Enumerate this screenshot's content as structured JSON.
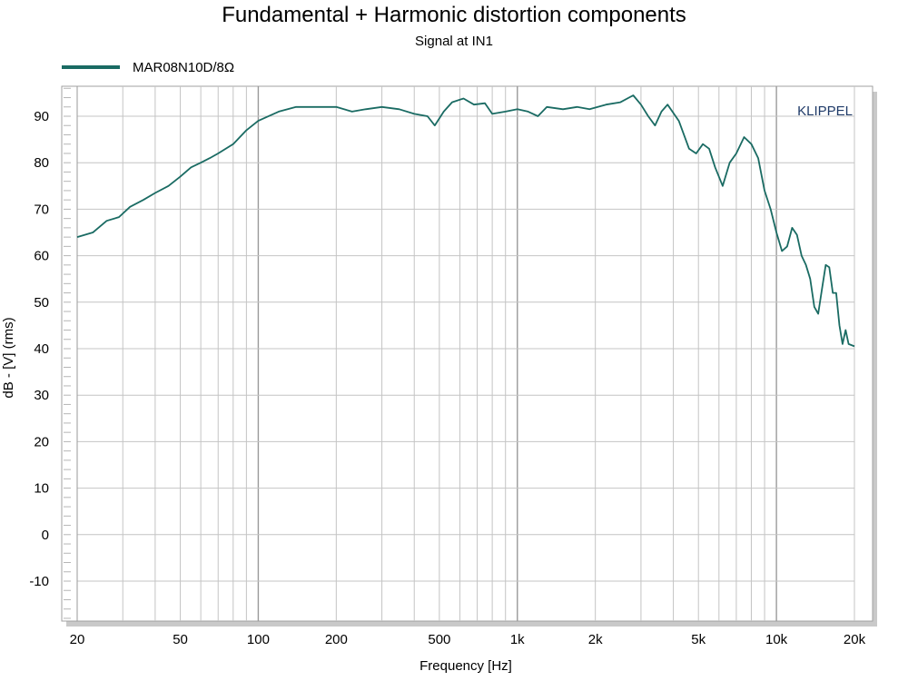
{
  "chart_data": {
    "type": "line",
    "title": "Fundamental + Harmonic distortion components",
    "subtitle": "Signal at IN1",
    "xlabel": "Frequency [Hz]",
    "ylabel": "dB - [V]  (rms)",
    "xscale": "log",
    "xlim": [
      20,
      20000
    ],
    "ylim": [
      -18,
      97
    ],
    "x_ticks": [
      20,
      50,
      100,
      200,
      500,
      1000,
      2000,
      5000,
      10000,
      20000
    ],
    "x_tick_labels": [
      "20",
      "50",
      "100",
      "200",
      "500",
      "1k",
      "2k",
      "5k",
      "10k",
      "20k"
    ],
    "y_ticks": [
      90,
      80,
      70,
      60,
      50,
      40,
      30,
      20,
      10,
      0,
      -10
    ],
    "y_tick_labels": [
      "90",
      "80",
      "70",
      "60",
      "50",
      "40",
      "30",
      "20",
      "10",
      "0",
      "-10"
    ],
    "grid": true,
    "legend_position": "top-left",
    "watermark": "KLIPPEL",
    "series": [
      {
        "name": "MAR08N10D/8Ω",
        "color": "#1a6b63",
        "points": [
          [
            20,
            64
          ],
          [
            23,
            65
          ],
          [
            26,
            67.5
          ],
          [
            29,
            68.3
          ],
          [
            32,
            70.5
          ],
          [
            36,
            72
          ],
          [
            40,
            73.5
          ],
          [
            45,
            75
          ],
          [
            50,
            77
          ],
          [
            55,
            79
          ],
          [
            60,
            80
          ],
          [
            65,
            81
          ],
          [
            70,
            82
          ],
          [
            80,
            84
          ],
          [
            90,
            87
          ],
          [
            100,
            89
          ],
          [
            120,
            91
          ],
          [
            140,
            92
          ],
          [
            170,
            92
          ],
          [
            200,
            92
          ],
          [
            230,
            91
          ],
          [
            260,
            91.5
          ],
          [
            300,
            92
          ],
          [
            350,
            91.5
          ],
          [
            400,
            90.5
          ],
          [
            450,
            90
          ],
          [
            480,
            88
          ],
          [
            520,
            91
          ],
          [
            560,
            93
          ],
          [
            620,
            93.8
          ],
          [
            680,
            92.5
          ],
          [
            750,
            92.8
          ],
          [
            800,
            90.5
          ],
          [
            900,
            91
          ],
          [
            1000,
            91.5
          ],
          [
            1100,
            91
          ],
          [
            1200,
            90
          ],
          [
            1300,
            92
          ],
          [
            1500,
            91.5
          ],
          [
            1700,
            92
          ],
          [
            1900,
            91.5
          ],
          [
            2200,
            92.5
          ],
          [
            2500,
            93
          ],
          [
            2800,
            94.5
          ],
          [
            3000,
            92.5
          ],
          [
            3200,
            90
          ],
          [
            3400,
            88
          ],
          [
            3600,
            91
          ],
          [
            3800,
            92.5
          ],
          [
            4200,
            89
          ],
          [
            4600,
            83
          ],
          [
            4900,
            82
          ],
          [
            5200,
            84
          ],
          [
            5500,
            83
          ],
          [
            5800,
            79
          ],
          [
            6200,
            75
          ],
          [
            6600,
            80
          ],
          [
            7000,
            82
          ],
          [
            7500,
            85.5
          ],
          [
            8000,
            84
          ],
          [
            8500,
            81
          ],
          [
            9000,
            74
          ],
          [
            9500,
            70
          ],
          [
            10000,
            65
          ],
          [
            10500,
            61
          ],
          [
            11000,
            62
          ],
          [
            11500,
            66
          ],
          [
            12000,
            64.5
          ],
          [
            12500,
            60
          ],
          [
            13000,
            58
          ],
          [
            13500,
            55
          ],
          [
            14000,
            49
          ],
          [
            14500,
            47.5
          ],
          [
            15000,
            53
          ],
          [
            15500,
            58
          ],
          [
            16000,
            57.5
          ],
          [
            16500,
            52
          ],
          [
            17000,
            52
          ],
          [
            17500,
            45
          ],
          [
            18000,
            41
          ],
          [
            18500,
            44
          ],
          [
            19000,
            41
          ],
          [
            20000,
            40.5
          ]
        ]
      }
    ]
  }
}
